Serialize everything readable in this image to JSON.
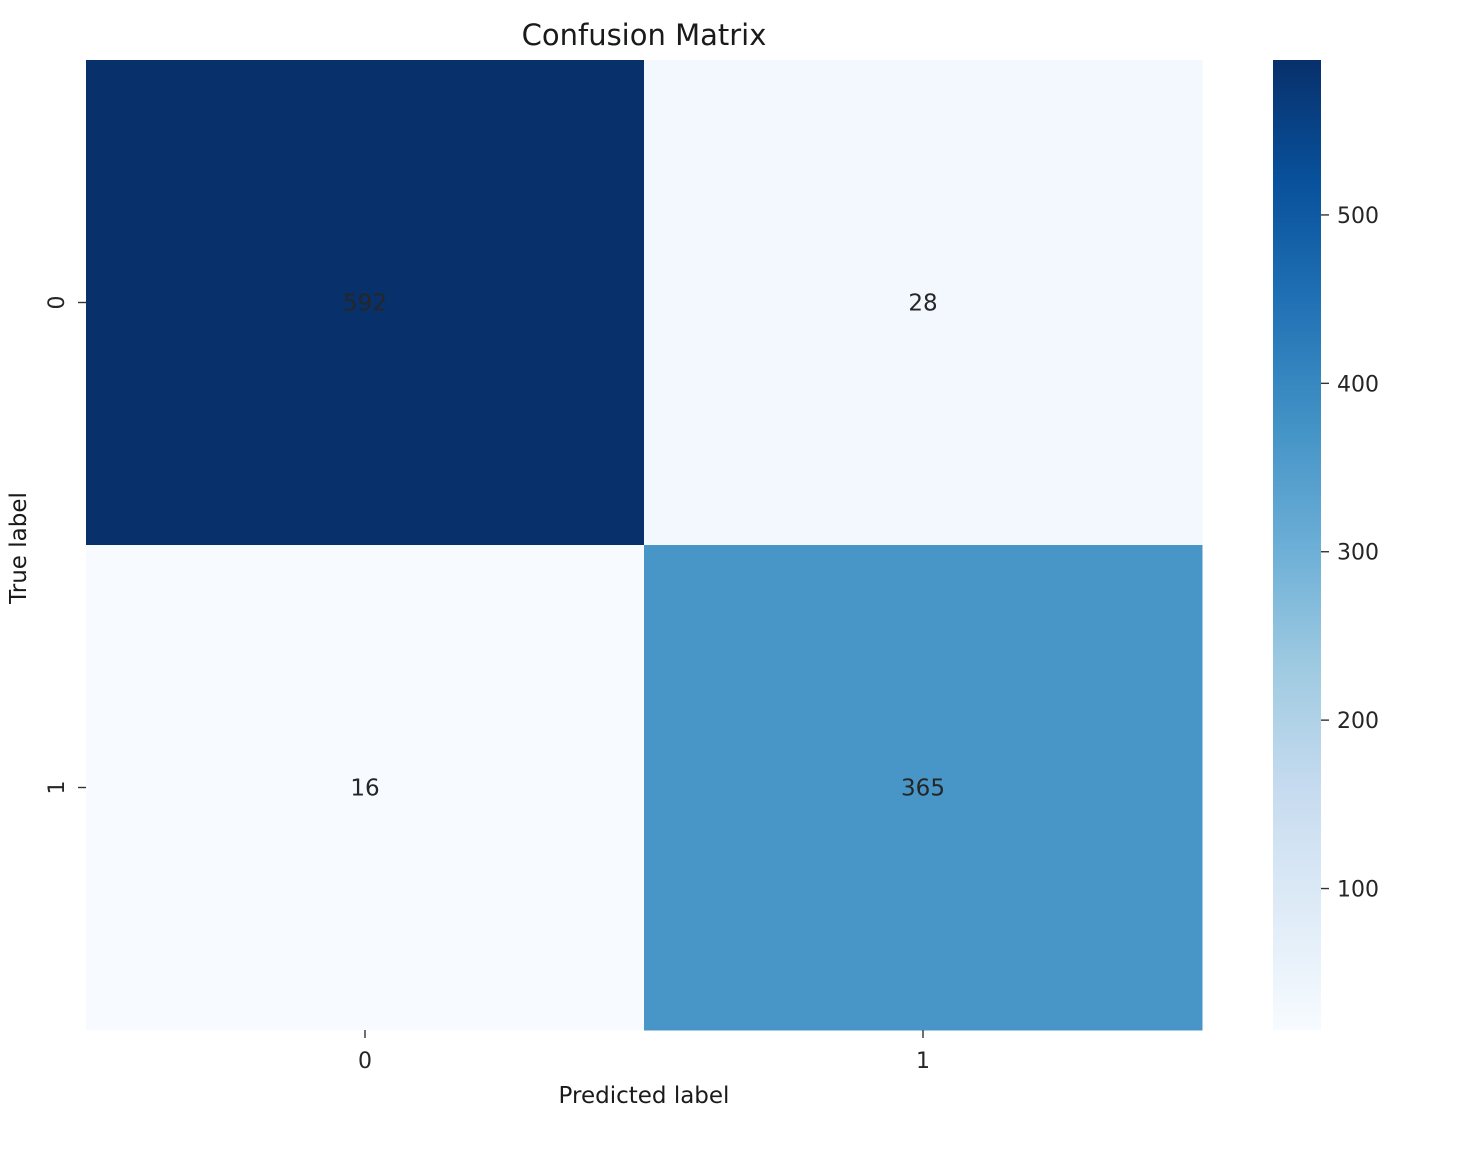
{
  "chart_data": {
    "type": "heatmap",
    "title": "Confusion Matrix",
    "xlabel": "Predicted label",
    "ylabel": "True label",
    "x_categories": [
      "0",
      "1"
    ],
    "y_categories": [
      "0",
      "1"
    ],
    "values": [
      [
        592,
        28
      ],
      [
        16,
        365
      ]
    ],
    "colormap": "Blues",
    "colorbar": {
      "vmin": 16,
      "vmax": 592,
      "ticks": [
        100,
        200,
        300,
        400,
        500
      ],
      "tick_labels": [
        "100",
        "200",
        "300",
        "400",
        "500"
      ]
    },
    "annotated": true,
    "grid": false
  }
}
